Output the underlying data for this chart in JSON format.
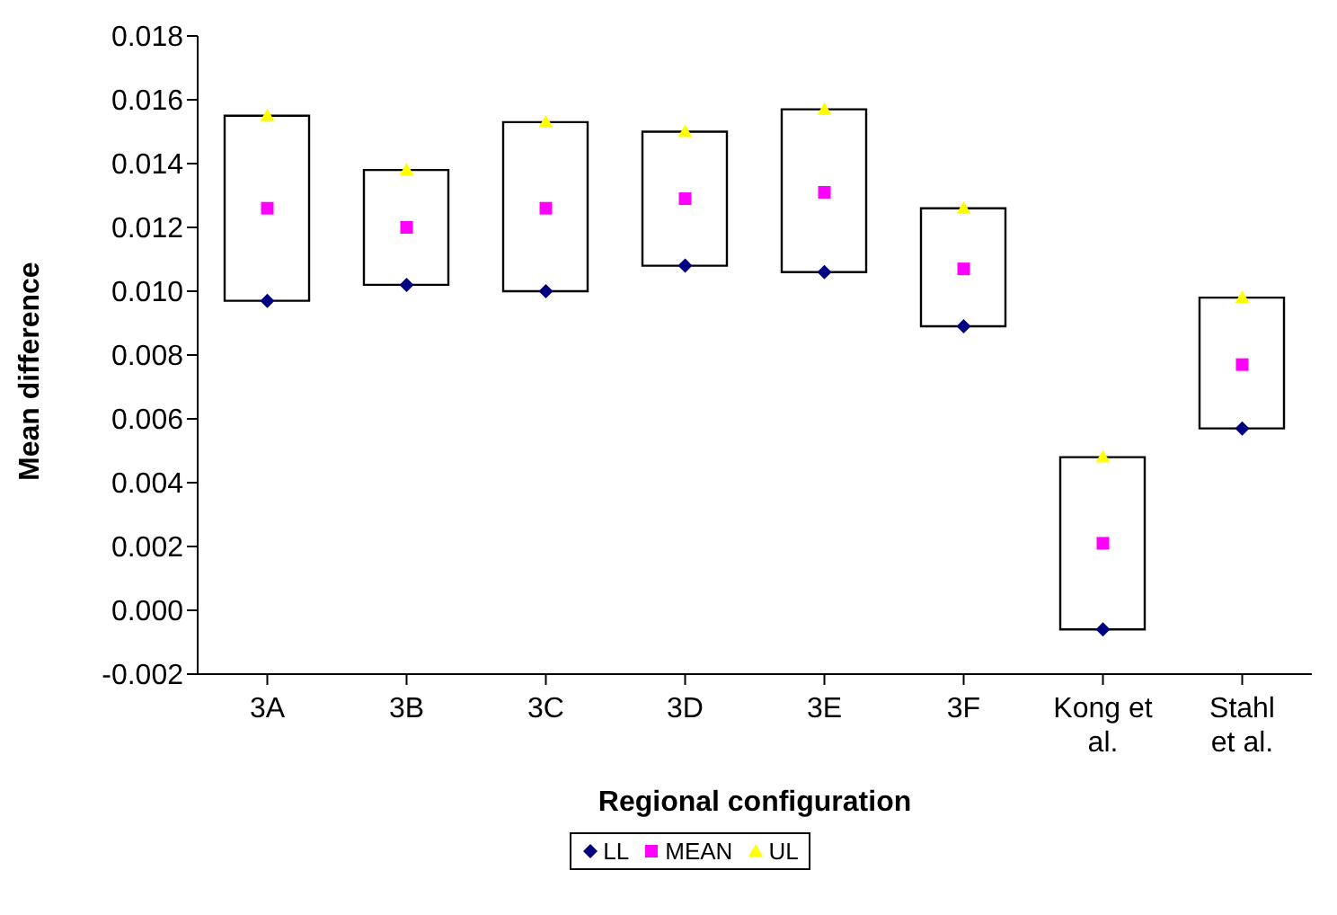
{
  "chart_data": {
    "type": "scatter",
    "xlabel": "Regional configuration",
    "ylabel": "Mean difference",
    "categories": [
      "3A",
      "3B",
      "3C",
      "3D",
      "3E",
      "3F",
      "Kong et al.",
      "Stahl et al."
    ],
    "series": [
      {
        "type": "bar",
        "color": "#ffffff",
        "base": [
          0.0097,
          0.0102,
          0.01,
          0.0108,
          0.0106,
          0.0089,
          -0.0006,
          0.0057
        ],
        "values": [
          0.0058,
          0.0036,
          0.0053,
          0.0042,
          0.0051,
          0.0037,
          0.0054,
          0.0041
        ]
      },
      {
        "name": "LL",
        "marker": "diamond",
        "color": "#000080",
        "values": [
          0.0097,
          0.0102,
          0.01,
          0.0108,
          0.0106,
          0.0089,
          -0.0006,
          0.0057
        ]
      },
      {
        "name": "MEAN",
        "marker": "square",
        "color": "#ff00ff",
        "values": [
          0.0126,
          0.012,
          0.0126,
          0.0129,
          0.0131,
          0.0107,
          0.0021,
          0.0077
        ]
      },
      {
        "name": "UL",
        "marker": "triangle",
        "color": "#ffff00",
        "values": [
          0.0155,
          0.0138,
          0.0153,
          0.015,
          0.0157,
          0.0126,
          0.0048,
          0.0098
        ]
      }
    ],
    "ylim": [
      -0.002,
      0.018
    ],
    "yticks": [
      {
        "value": -0.002,
        "label": "-0.002"
      },
      {
        "value": 0,
        "label": "0.000"
      },
      {
        "value": 0.002,
        "label": "0.002"
      },
      {
        "value": 0.004,
        "label": "0.004"
      },
      {
        "value": 0.006,
        "label": "0.006"
      },
      {
        "value": 0.008,
        "label": "0.008"
      },
      {
        "value": 0.01,
        "label": "0.010"
      },
      {
        "value": 0.012,
        "label": "0.012"
      },
      {
        "value": 0.014,
        "label": "0.014"
      },
      {
        "value": 0.016,
        "label": "0.016"
      },
      {
        "value": 0.018,
        "label": "0.018"
      }
    ],
    "legend": "bottom",
    "grid": false
  }
}
